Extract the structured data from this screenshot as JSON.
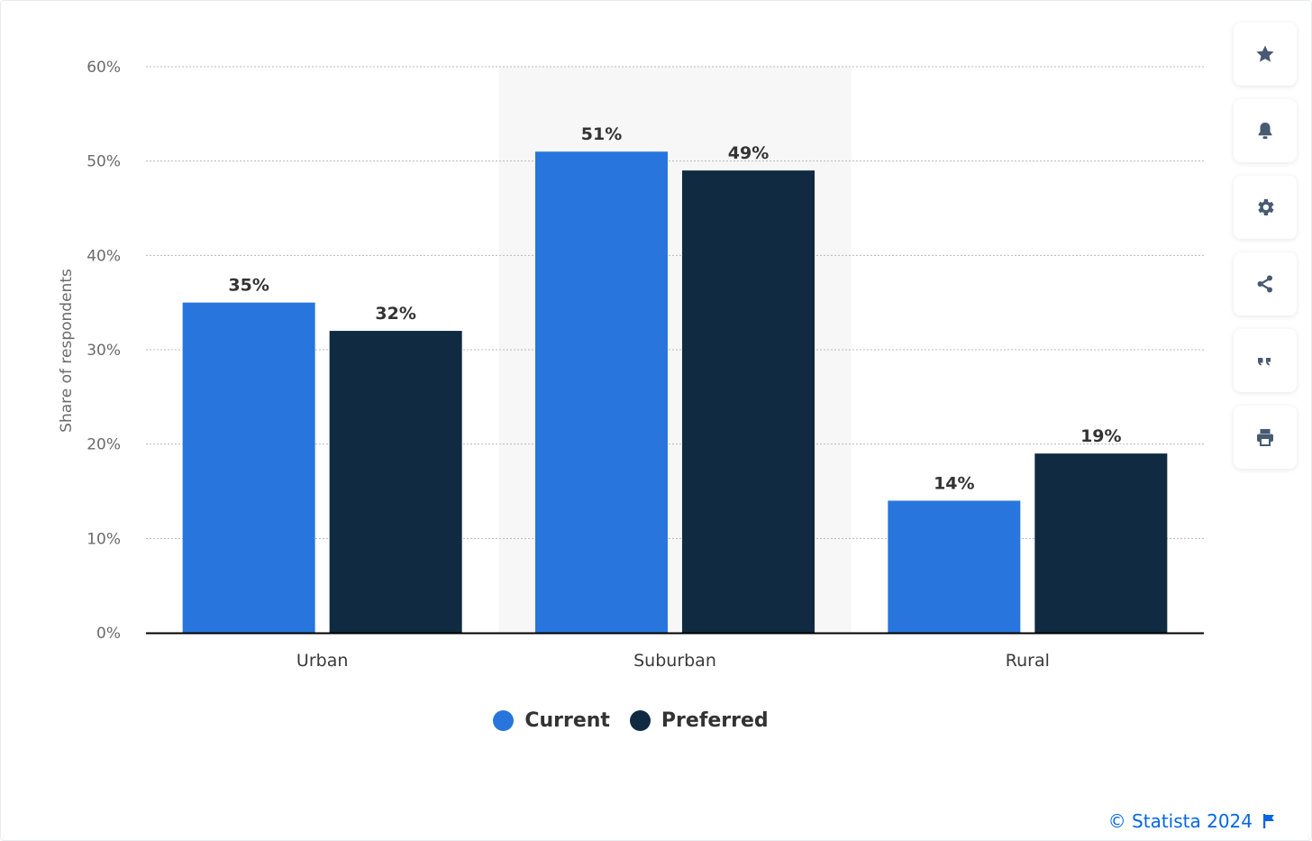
{
  "colors": {
    "current": "#2876dd",
    "preferred": "#0f2a41",
    "accent": "#0666e5",
    "icon": "#475a72",
    "grid": "#b8b8b8",
    "highlight_band": "#f7f7f7"
  },
  "chart_data": {
    "type": "bar",
    "title": "",
    "xlabel": "",
    "ylabel": "Share of respondents",
    "categories": [
      "Urban",
      "Suburban",
      "Rural"
    ],
    "series": [
      {
        "name": "Current",
        "values": [
          35,
          51,
          14
        ],
        "labels": [
          "35%",
          "51%",
          "14%"
        ]
      },
      {
        "name": "Preferred",
        "values": [
          32,
          49,
          19
        ],
        "labels": [
          "32%",
          "49%",
          "19%"
        ]
      }
    ],
    "ylim": [
      0,
      60
    ],
    "yticks": [
      0,
      10,
      20,
      30,
      40,
      50,
      60
    ],
    "ytick_labels": [
      "0%",
      "10%",
      "20%",
      "30%",
      "40%",
      "50%",
      "60%"
    ],
    "grid": true,
    "highlighted_category": "Suburban",
    "legend_position": "bottom"
  },
  "legend": {
    "items": [
      {
        "label": "Current"
      },
      {
        "label": "Preferred"
      }
    ]
  },
  "toolbar": {
    "buttons": [
      {
        "icon": "star-icon"
      },
      {
        "icon": "bell-icon"
      },
      {
        "icon": "gear-icon"
      },
      {
        "icon": "share-icon"
      },
      {
        "icon": "quote-icon"
      },
      {
        "icon": "print-icon"
      }
    ]
  },
  "footer": {
    "credit": "© Statista 2024",
    "flag_icon": "flag-icon"
  }
}
